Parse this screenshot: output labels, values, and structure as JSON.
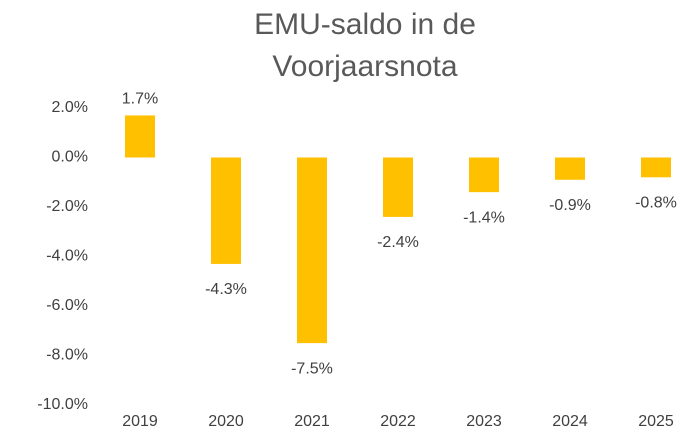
{
  "chart_data": {
    "type": "bar",
    "title": "EMU-saldo in de Voorjaarsnota",
    "categories": [
      "2019",
      "2020",
      "2021",
      "2022",
      "2023",
      "2024",
      "2025"
    ],
    "values": [
      1.7,
      -4.3,
      -7.5,
      -2.4,
      -1.4,
      -0.9,
      -0.8
    ],
    "value_labels": [
      "1.7%",
      "-4.3%",
      "-7.5%",
      "-2.4%",
      "-1.4%",
      "-0.9%",
      "-0.8%"
    ],
    "color": "#ffc000",
    "ylim": [
      -10,
      2
    ],
    "yticks": [
      {
        "value": -10,
        "label": "-10.0%"
      },
      {
        "value": -8,
        "label": "-8.0%"
      },
      {
        "value": -6,
        "label": "-6.0%"
      },
      {
        "value": -4,
        "label": "-4.0%"
      },
      {
        "value": -2,
        "label": "-2.0%"
      },
      {
        "value": 0,
        "label": "0.0%"
      },
      {
        "value": 2,
        "label": "2.0%"
      }
    ],
    "grid": false
  }
}
